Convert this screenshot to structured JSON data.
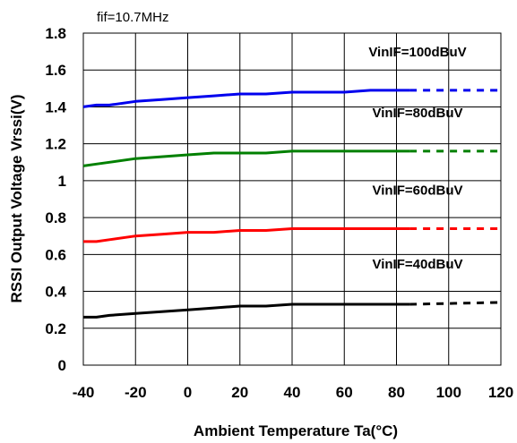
{
  "chart_data": {
    "type": "line",
    "annotation": "fif=10.7MHz",
    "xlabel": "Ambient Temperature Ta(°C)",
    "ylabel": "RSSI Output Voltage Vrssi(V)",
    "xlim": [
      -40,
      120
    ],
    "ylim": [
      0,
      1.8
    ],
    "xticks": [
      -40,
      -20,
      0,
      20,
      40,
      60,
      80,
      100,
      120
    ],
    "yticks": [
      0,
      0.2,
      0.4,
      0.6,
      0.8,
      1,
      1.2,
      1.4,
      1.6,
      1.8
    ],
    "grid": true,
    "measured_until_x": 85,
    "series": [
      {
        "name": "VinIF=100dBuV",
        "color": "#0000ee",
        "x": [
          -40,
          -35,
          -30,
          -20,
          -10,
          0,
          10,
          20,
          30,
          40,
          50,
          60,
          70,
          80,
          85,
          120
        ],
        "values": [
          1.4,
          1.41,
          1.41,
          1.43,
          1.44,
          1.45,
          1.46,
          1.47,
          1.47,
          1.48,
          1.48,
          1.48,
          1.49,
          1.49,
          1.49,
          1.49
        ]
      },
      {
        "name": "VinIF=80dBuV",
        "color": "#008000",
        "x": [
          -40,
          -35,
          -30,
          -20,
          -10,
          0,
          10,
          20,
          30,
          40,
          50,
          60,
          70,
          80,
          85,
          120
        ],
        "values": [
          1.08,
          1.09,
          1.1,
          1.12,
          1.13,
          1.14,
          1.15,
          1.15,
          1.15,
          1.16,
          1.16,
          1.16,
          1.16,
          1.16,
          1.16,
          1.16
        ]
      },
      {
        "name": "VinIF=60dBuV",
        "color": "#ff0000",
        "x": [
          -40,
          -35,
          -30,
          -20,
          -10,
          0,
          10,
          20,
          30,
          40,
          50,
          60,
          70,
          80,
          85,
          120
        ],
        "values": [
          0.67,
          0.67,
          0.68,
          0.7,
          0.71,
          0.72,
          0.72,
          0.73,
          0.73,
          0.74,
          0.74,
          0.74,
          0.74,
          0.74,
          0.74,
          0.74
        ]
      },
      {
        "name": "VinIF=40dBuV",
        "color": "#000000",
        "x": [
          -40,
          -35,
          -30,
          -20,
          -10,
          0,
          10,
          20,
          30,
          40,
          50,
          60,
          70,
          80,
          85,
          120
        ],
        "values": [
          0.26,
          0.26,
          0.27,
          0.28,
          0.29,
          0.3,
          0.31,
          0.32,
          0.32,
          0.33,
          0.33,
          0.33,
          0.33,
          0.33,
          0.33,
          0.34
        ]
      }
    ]
  }
}
